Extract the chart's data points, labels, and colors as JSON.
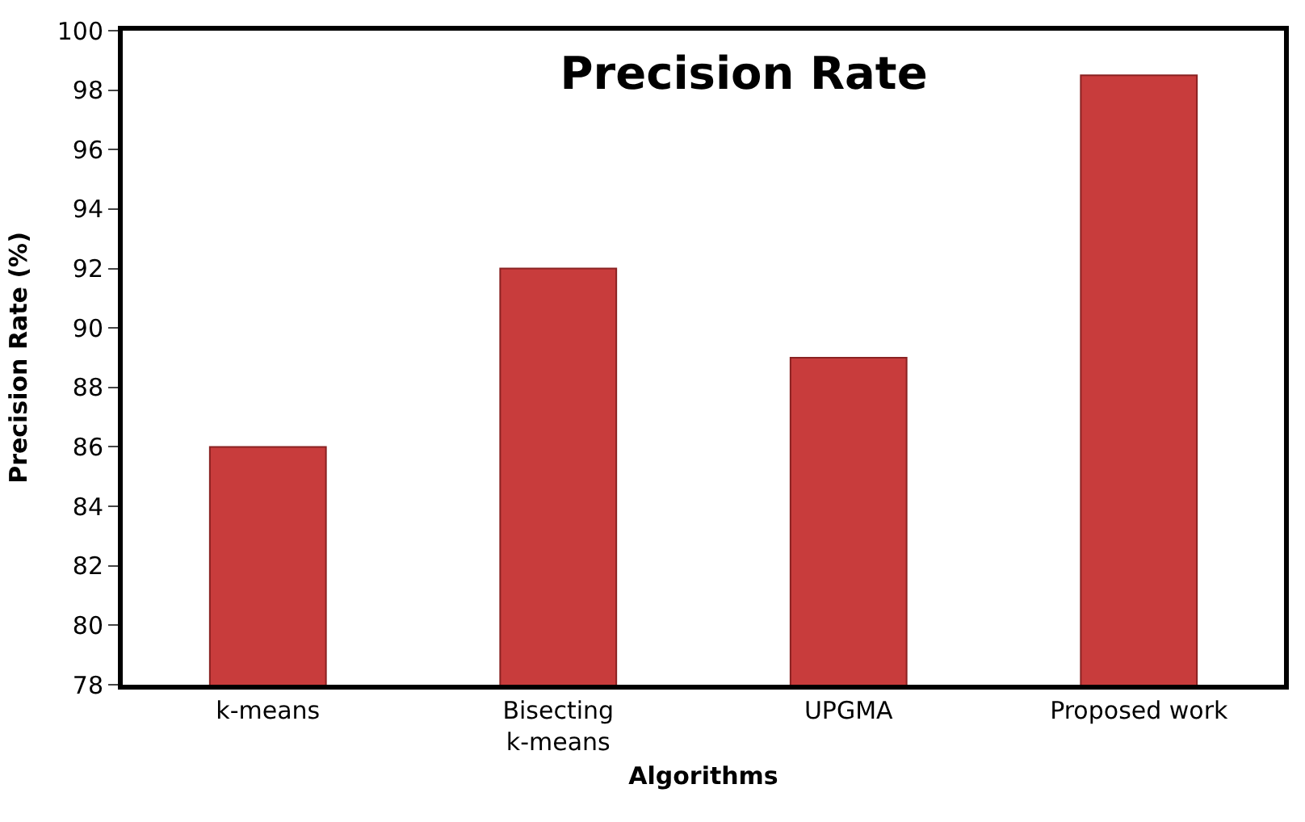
{
  "chart_data": {
    "type": "bar",
    "title": "Precision Rate",
    "xlabel": "Algorithms",
    "ylabel": "Precision Rate (%)",
    "categories": [
      "k-means",
      "Bisecting k-means",
      "UPGMA",
      "Proposed work"
    ],
    "values": [
      86,
      92,
      89,
      98.5
    ],
    "color": "#c83c3c",
    "ylim": [
      78,
      100
    ],
    "yticks": [
      78,
      80,
      82,
      84,
      86,
      88,
      90,
      92,
      94,
      96,
      98,
      100
    ]
  }
}
